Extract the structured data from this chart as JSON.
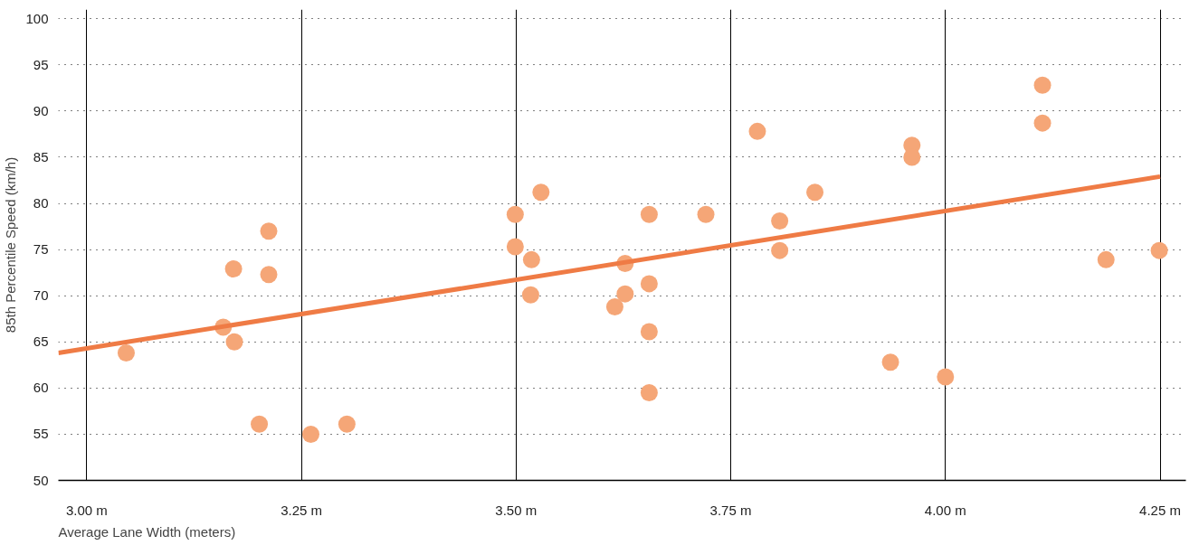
{
  "chart_data": {
    "type": "scatter",
    "xlabel": "Average Lane Width (meters)",
    "ylabel": "85th Percentile Speed (km/h)",
    "xlim": [
      2.967,
      4.28
    ],
    "ylim": [
      50,
      101
    ],
    "xticks": [
      {
        "value": 3.0,
        "label": "3.00 m"
      },
      {
        "value": 3.25,
        "label": "3.25 m"
      },
      {
        "value": 3.5,
        "label": "3.50 m"
      },
      {
        "value": 3.75,
        "label": "3.75 m"
      },
      {
        "value": 4.0,
        "label": "4.00 m"
      },
      {
        "value": 4.25,
        "label": "4.25 m"
      }
    ],
    "yticks": [
      50,
      55,
      60,
      65,
      70,
      75,
      80,
      85,
      90,
      95,
      100
    ],
    "grid": true,
    "series": [
      {
        "marker": "circle",
        "color": "#f5a677",
        "x": [
          3.046,
          3.159,
          3.172,
          3.171,
          3.212,
          3.212,
          3.201,
          3.261,
          3.303,
          3.499,
          3.499,
          3.529,
          3.518,
          3.517,
          3.615,
          3.627,
          3.627,
          3.655,
          3.655,
          3.655,
          3.655,
          3.721,
          3.781,
          3.807,
          3.807,
          3.848,
          3.936,
          3.961,
          3.961,
          4.0,
          4.113,
          4.113,
          4.187,
          4.249
        ],
        "values": [
          63.8,
          66.6,
          65.0,
          72.9,
          77.0,
          72.3,
          56.1,
          55.0,
          56.1,
          78.8,
          75.3,
          81.2,
          73.9,
          70.1,
          68.8,
          73.5,
          70.2,
          78.8,
          71.3,
          66.1,
          59.5,
          78.8,
          87.8,
          78.1,
          74.9,
          81.2,
          62.8,
          86.3,
          85.0,
          61.2,
          92.8,
          88.7,
          73.9,
          74.9
        ]
      },
      {
        "type": "line",
        "color": "#ef7b45",
        "x": [
          2.967,
          4.25
        ],
        "values": [
          63.8,
          82.9
        ]
      }
    ]
  }
}
